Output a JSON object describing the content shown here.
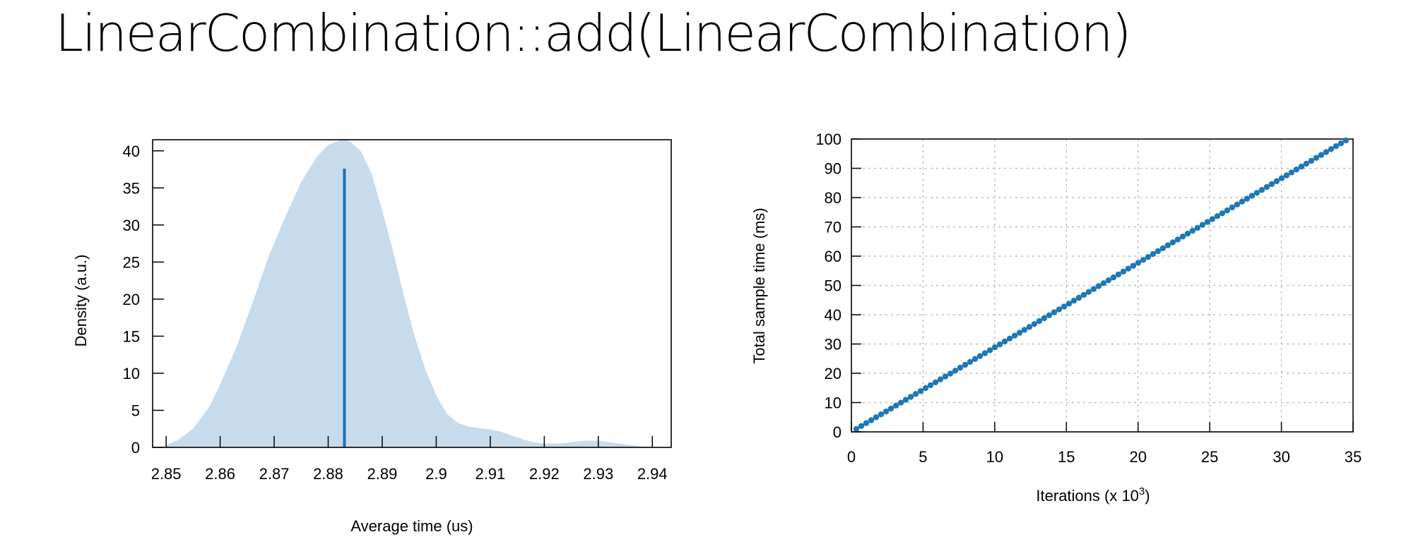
{
  "page": {
    "title": "LinearCombination::add(LinearCombination)"
  },
  "chart_data": [
    {
      "type": "area",
      "title": "",
      "xlabel": "Average time (us)",
      "ylabel": "Density (a.u.)",
      "xlim": [
        2.8475,
        2.9435
      ],
      "ylim": [
        0,
        41.5
      ],
      "xticks": [
        "2.85",
        "2.86",
        "2.87",
        "2.88",
        "2.89",
        "2.9",
        "2.91",
        "2.92",
        "2.93",
        "2.94"
      ],
      "yticks": [
        "0",
        "5",
        "10",
        "15",
        "20",
        "25",
        "30",
        "35",
        "40"
      ],
      "grid": false,
      "colors": {
        "fill": "#c6dbec",
        "line": "#1f6eb4"
      },
      "series": [
        {
          "x": [
            2.85,
            2.852,
            2.855,
            2.858,
            2.86,
            2.863,
            2.866,
            2.869,
            2.872,
            2.875,
            2.878,
            2.88,
            2.882,
            2.883,
            2.884,
            2.886,
            2.888,
            2.89,
            2.892,
            2.894,
            2.896,
            2.898,
            2.9,
            2.902,
            2.904,
            2.906,
            2.908,
            2.91,
            2.912,
            2.914,
            2.916,
            2.918,
            2.92,
            2.922,
            2.924,
            2.926,
            2.928,
            2.93,
            2.932,
            2.934,
            2.936,
            2.938,
            2.94
          ],
          "y": [
            0.3,
            0.9,
            2.5,
            5.5,
            8.5,
            13.5,
            19.5,
            25.8,
            31.0,
            35.8,
            39.3,
            40.8,
            41.4,
            41.5,
            41.3,
            40.0,
            37.0,
            32.0,
            26.5,
            20.5,
            15.0,
            10.5,
            7.0,
            4.5,
            3.3,
            2.8,
            2.6,
            2.4,
            2.1,
            1.6,
            1.1,
            0.7,
            0.5,
            0.5,
            0.6,
            0.8,
            0.9,
            0.9,
            0.7,
            0.5,
            0.3,
            0.1,
            0.0
          ]
        }
      ],
      "mean_line": {
        "x": 2.883,
        "y": 37.6
      }
    },
    {
      "type": "scatter",
      "title": "",
      "xlabel": "Iterations (x 10",
      "xlabel_sup": "3",
      "xlabel_end": ")",
      "ylabel": "Total sample time (ms)",
      "xlim": [
        0,
        35
      ],
      "ylim": [
        0,
        100
      ],
      "xticks": [
        "0",
        "5",
        "10",
        "15",
        "20",
        "25",
        "30",
        "35"
      ],
      "yticks": [
        "0",
        "10",
        "20",
        "30",
        "40",
        "50",
        "60",
        "70",
        "80",
        "90",
        "100"
      ],
      "grid": true,
      "colors": {
        "points": "#1f77b4"
      },
      "series": [
        {
          "x_start": 0.345,
          "x_step": 0.345,
          "count": 100,
          "slope_ms_per_k_iter": 2.885
        }
      ]
    }
  ]
}
